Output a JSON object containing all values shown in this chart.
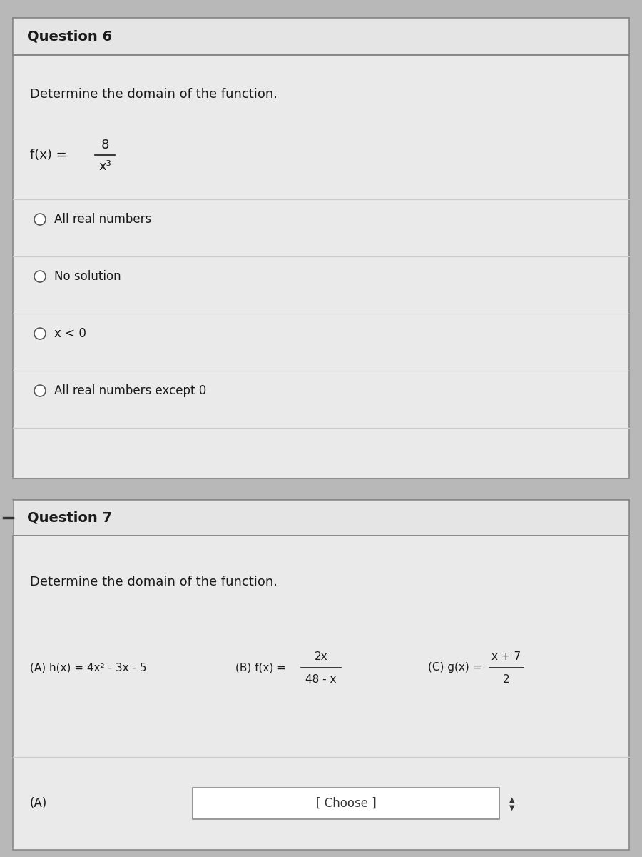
{
  "bg_color": "#b8b8b8",
  "card_bg": "#eaeaea",
  "title_bg": "#e5e5e5",
  "white": "#ffffff",
  "text_color": "#1a1a1a",
  "border_color": "#888888",
  "line_color": "#cccccc",
  "q6_title": "Question 6",
  "q6_instruction": "Determine the domain of the function.",
  "q6_numerator": "8",
  "q6_denominator": "x³",
  "q6_options": [
    "All real numbers",
    "No solution",
    "x < 0",
    "All real numbers except 0"
  ],
  "q7_title": "Question 7",
  "q7_instruction": "Determine the domain of the function.",
  "q7_A_label": "(A) h(x) = 4x² - 3x - 5",
  "q7_B_num": "2x",
  "q7_B_den": "48 - x",
  "q7_C_num": "x + 7",
  "q7_C_den": "2",
  "q7_answer_label": "(A)",
  "q7_dropdown_text": "[ Choose ]"
}
